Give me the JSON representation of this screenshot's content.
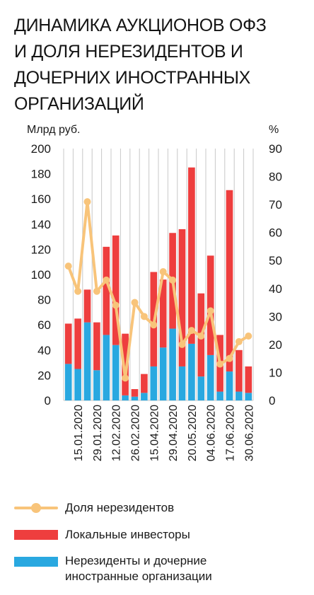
{
  "title_lines": [
    "ДИНАМИКА АУКЦИОНОВ ОФЗ",
    "И ДОЛЯ НЕРЕЗИДЕНТОВ И",
    "ДОЧЕРНИХ ИНОСТРАННЫХ",
    "ОРГАНИЗАЦИЙ"
  ],
  "colors": {
    "local": "#ee3e3e",
    "nonres": "#29a8e0",
    "line": "#f8c47a",
    "grid": "#c8c8c8",
    "text": "#1a1a1a"
  },
  "chart_data": {
    "type": "bar",
    "stacked": true,
    "ylabel": "Млрд руб.",
    "y2label": "%",
    "ylim": [
      0,
      200
    ],
    "yticks": [
      0,
      20,
      40,
      60,
      80,
      100,
      120,
      140,
      160,
      180,
      200
    ],
    "y2lim": [
      0,
      90
    ],
    "y2ticks": [
      0,
      10,
      20,
      30,
      40,
      50,
      60,
      70,
      80,
      90
    ],
    "grid": "vertical",
    "x_tick_labels": [
      "15.01.2020",
      "29.01.2020",
      "12.02.2020",
      "26.02.2020",
      "15.04.2020",
      "29.04.2020",
      "20.05.2020",
      "04.06.2020",
      "17.06.2020",
      "30.06.2020"
    ],
    "series": [
      {
        "name": "Нерезиденты и дочерние иностранные организации",
        "kind": "bar",
        "values": [
          29,
          25,
          62,
          24,
          52,
          44,
          4,
          3,
          6,
          27,
          42,
          57,
          27,
          45,
          19,
          36,
          7,
          23,
          7,
          6
        ]
      },
      {
        "name": "Локальные инвесторы",
        "kind": "bar",
        "values": [
          32,
          40,
          26,
          38,
          70,
          87,
          49,
          6,
          15,
          75,
          54,
          76,
          109,
          140,
          66,
          79,
          45,
          144,
          33,
          21
        ]
      },
      {
        "name": "Доля нерезидентов",
        "kind": "line",
        "axis": "right",
        "values": [
          48,
          39,
          71,
          39,
          43,
          34,
          8,
          35,
          30,
          27,
          46,
          43,
          20,
          25,
          23,
          32,
          13,
          15,
          21,
          23
        ]
      }
    ],
    "legend_position": "bottom"
  },
  "legend": [
    {
      "label": "Доля нерезидентов"
    },
    {
      "label": "Локальные инвесторы"
    },
    {
      "label_lines": [
        "Нерезиденты и дочерние",
        "иностранные организации"
      ]
    }
  ]
}
